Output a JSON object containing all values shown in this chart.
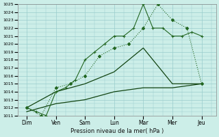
{
  "bg_color": "#cceee8",
  "grid_color": "#99cccc",
  "line_color_bright": "#226622",
  "line_color_dark": "#114411",
  "xlabel": "Pression niveau de la mer( hPa )",
  "ylim": [
    1011,
    1025
  ],
  "yticks": [
    1011,
    1012,
    1013,
    1014,
    1015,
    1016,
    1017,
    1018,
    1019,
    1020,
    1021,
    1022,
    1023,
    1024,
    1025
  ],
  "x_labels": [
    "Dim",
    "Ven",
    "Sam",
    "Lun",
    "Mar",
    "Mer",
    "Jeu"
  ],
  "x_positions": [
    0,
    1,
    2,
    3,
    4,
    5,
    6
  ],
  "xlim": [
    -0.3,
    6.5
  ],
  "series_dot_x": [
    0,
    0.33,
    0.67,
    1.0,
    1.33,
    1.67,
    2.0,
    2.33,
    2.67,
    3.0,
    3.33,
    3.67,
    4.0,
    4.33,
    4.67,
    5.0,
    5.33,
    5.67,
    6.0
  ],
  "series_dot_y": [
    1012.0,
    1011.5,
    1011.0,
    1014.0,
    1014.5,
    1015.5,
    1018.0,
    1019.0,
    1020.0,
    1021.0,
    1021.0,
    1022.0,
    1025.0,
    1022.0,
    1022.0,
    1021.0,
    1021.0,
    1021.5,
    1021.0
  ],
  "series_diamond_x": [
    0,
    0.5,
    1.0,
    1.5,
    2.0,
    2.5,
    3.0,
    3.5,
    4.0,
    4.5,
    5.0,
    5.5,
    6.0
  ],
  "series_diamond_y": [
    1012.0,
    1011.0,
    1014.5,
    1015.0,
    1016.0,
    1018.5,
    1019.5,
    1020.0,
    1022.0,
    1025.0,
    1023.0,
    1022.0,
    1015.0
  ],
  "series3_x": [
    0,
    1,
    2,
    3,
    4,
    5,
    6
  ],
  "series3_y": [
    1012.0,
    1014.0,
    1015.0,
    1016.5,
    1019.5,
    1015.0,
    1015.0
  ],
  "series4_x": [
    0,
    1,
    2,
    3,
    4,
    5,
    6
  ],
  "series4_y": [
    1011.5,
    1012.5,
    1013.0,
    1014.0,
    1014.5,
    1014.5,
    1015.0
  ]
}
